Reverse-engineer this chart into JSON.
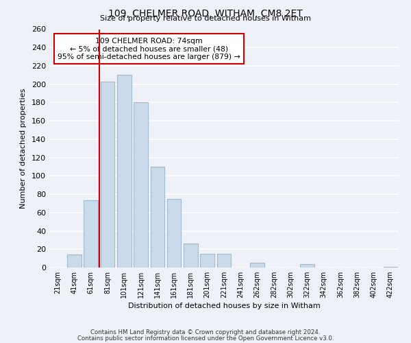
{
  "title": "109, CHELMER ROAD, WITHAM, CM8 2ET",
  "subtitle": "Size of property relative to detached houses in Witham",
  "xlabel": "Distribution of detached houses by size in Witham",
  "ylabel": "Number of detached properties",
  "bar_labels": [
    "21sqm",
    "41sqm",
    "61sqm",
    "81sqm",
    "101sqm",
    "121sqm",
    "141sqm",
    "161sqm",
    "181sqm",
    "201sqm",
    "221sqm",
    "241sqm",
    "262sqm",
    "282sqm",
    "302sqm",
    "322sqm",
    "342sqm",
    "362sqm",
    "382sqm",
    "402sqm",
    "422sqm"
  ],
  "bar_values": [
    0,
    14,
    73,
    203,
    210,
    180,
    110,
    75,
    26,
    15,
    15,
    0,
    5,
    0,
    0,
    4,
    0,
    0,
    0,
    0,
    1
  ],
  "bar_color": "#c9daea",
  "bar_edge_color": "#a0bbd0",
  "vline_x_index": 3,
  "vline_color": "#cc0000",
  "annotation_title": "109 CHELMER ROAD: 74sqm",
  "annotation_line1": "← 5% of detached houses are smaller (48)",
  "annotation_line2": "95% of semi-detached houses are larger (879) →",
  "annotation_box_edge": "#cc0000",
  "ylim": [
    0,
    260
  ],
  "yticks": [
    0,
    20,
    40,
    60,
    80,
    100,
    120,
    140,
    160,
    180,
    200,
    220,
    240,
    260
  ],
  "footer_line1": "Contains HM Land Registry data © Crown copyright and database right 2024.",
  "footer_line2": "Contains public sector information licensed under the Open Government Licence v3.0.",
  "background_color": "#eef2f8",
  "grid_color": "#ffffff"
}
